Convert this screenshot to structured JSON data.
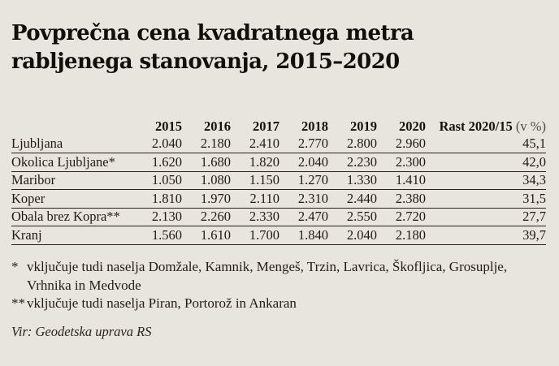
{
  "title": {
    "line1": "Povprečna cena kvadratnega metra",
    "line2": "rabljenega stanovanja, 2015–2020"
  },
  "table": {
    "year_headers": [
      "2015",
      "2016",
      "2017",
      "2018",
      "2019",
      "2020"
    ],
    "growth_header": {
      "bold": "Rast 2020/15",
      "light": "(v %)"
    },
    "rows": [
      {
        "label": "Ljubljana",
        "values": [
          "2.040",
          "2.180",
          "2.410",
          "2.770",
          "2.800",
          "2.960"
        ],
        "growth": "45,1"
      },
      {
        "label": "Okolica Ljubljane*",
        "values": [
          "1.620",
          "1.680",
          "1.820",
          "2.040",
          "2.230",
          "2.300"
        ],
        "growth": "42,0"
      },
      {
        "label": "Maribor",
        "values": [
          "1.050",
          "1.080",
          "1.150",
          "1.270",
          "1.330",
          "1.410"
        ],
        "growth": "34,3"
      },
      {
        "label": "Koper",
        "values": [
          "1.810",
          "1.970",
          "2.110",
          "2.310",
          "2.440",
          "2.380"
        ],
        "growth": "31,5"
      },
      {
        "label": "Obala brez Kopra**",
        "values": [
          "2.130",
          "2.260",
          "2.330",
          "2.470",
          "2.550",
          "2.720"
        ],
        "growth": "27,7"
      },
      {
        "label": "Kranj",
        "values": [
          "1.560",
          "1.610",
          "1.700",
          "1.840",
          "2.040",
          "2.180"
        ],
        "growth": "39,7"
      }
    ]
  },
  "chart_data": {
    "type": "table",
    "title": "Povprečna cena kvadratnega metra rabljenega stanovanja, 2015–2020",
    "categories": [
      2015,
      2016,
      2017,
      2018,
      2019,
      2020
    ],
    "series": [
      {
        "name": "Ljubljana",
        "values": [
          2040,
          2180,
          2410,
          2770,
          2800,
          2960
        ],
        "growth_2020_15_pct": 45.1
      },
      {
        "name": "Okolica Ljubljane",
        "values": [
          1620,
          1680,
          1820,
          2040,
          2230,
          2300
        ],
        "growth_2020_15_pct": 42.0
      },
      {
        "name": "Maribor",
        "values": [
          1050,
          1080,
          1150,
          1270,
          1330,
          1410
        ],
        "growth_2020_15_pct": 34.3
      },
      {
        "name": "Koper",
        "values": [
          1810,
          1970,
          2110,
          2310,
          2440,
          2380
        ],
        "growth_2020_15_pct": 31.5
      },
      {
        "name": "Obala brez Kopra",
        "values": [
          2130,
          2260,
          2330,
          2470,
          2550,
          2720
        ],
        "growth_2020_15_pct": 27.7
      },
      {
        "name": "Kranj",
        "values": [
          1560,
          1610,
          1700,
          1840,
          2040,
          2180
        ],
        "growth_2020_15_pct": 39.7
      }
    ],
    "growth_column_label": "Rast 2020/15 (v %)"
  },
  "footnotes": [
    {
      "marker": "*",
      "text": "vključuje tudi naselja Domžale, Kamnik, Mengeš, Trzin, Lavrica, Škofljica, Grosuplje, Vrhnika in Medvode"
    },
    {
      "marker": "**",
      "text": "vključuje tudi naselja Piran, Portorož in Ankaran"
    }
  ],
  "source": "Vir: Geodetska uprava RS",
  "colors": {
    "background": "#e8e5de",
    "ink": "#1c1610",
    "rule_line": "#29221a",
    "header_light": "#4f4a42"
  }
}
